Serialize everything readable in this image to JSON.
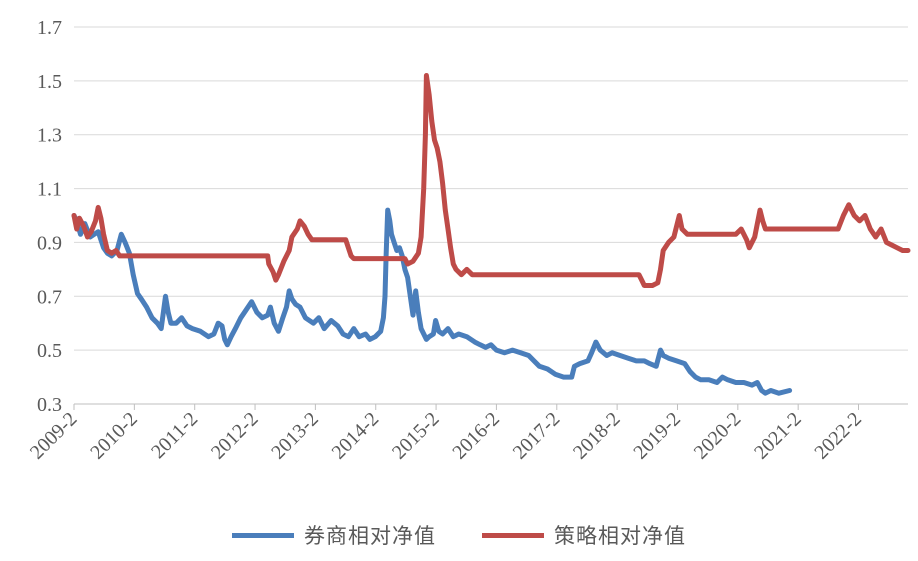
{
  "chart_data": {
    "type": "line",
    "title": "",
    "xlabel": "",
    "ylabel": "",
    "ylim": [
      0.3,
      1.7
    ],
    "y_ticks": [
      "0.3",
      "0.5",
      "0.7",
      "0.9",
      "1.1",
      "1.3",
      "1.5",
      "1.7"
    ],
    "x_ticks": [
      "2009-2",
      "2010-2",
      "2011-2",
      "2012-2",
      "2013-2",
      "2014-2",
      "2015-2",
      "2016-2",
      "2017-2",
      "2018-2",
      "2019-2",
      "2020-2",
      "2021-2",
      "2022-2"
    ],
    "grid": "horizontal",
    "legend_position": "bottom",
    "series": [
      {
        "name": "券商相对净值",
        "color": "#4a7ebb",
        "points": [
          [
            0.0,
            1.0
          ],
          [
            0.05,
            0.98
          ],
          [
            0.12,
            0.93
          ],
          [
            0.2,
            0.97
          ],
          [
            0.3,
            0.92
          ],
          [
            0.45,
            0.94
          ],
          [
            0.55,
            0.88
          ],
          [
            0.62,
            0.86
          ],
          [
            0.7,
            0.85
          ],
          [
            0.8,
            0.87
          ],
          [
            0.88,
            0.93
          ],
          [
            0.95,
            0.9
          ],
          [
            1.03,
            0.86
          ],
          [
            1.1,
            0.78
          ],
          [
            1.18,
            0.71
          ],
          [
            1.25,
            0.69
          ],
          [
            1.35,
            0.66
          ],
          [
            1.45,
            0.62
          ],
          [
            1.55,
            0.6
          ],
          [
            1.62,
            0.58
          ],
          [
            1.7,
            0.7
          ],
          [
            1.75,
            0.64
          ],
          [
            1.8,
            0.6
          ],
          [
            1.9,
            0.6
          ],
          [
            2.0,
            0.62
          ],
          [
            2.1,
            0.59
          ],
          [
            2.2,
            0.58
          ],
          [
            2.35,
            0.57
          ],
          [
            2.5,
            0.55
          ],
          [
            2.6,
            0.56
          ],
          [
            2.68,
            0.6
          ],
          [
            2.75,
            0.59
          ],
          [
            2.8,
            0.54
          ],
          [
            2.85,
            0.52
          ],
          [
            2.92,
            0.55
          ],
          [
            3.0,
            0.58
          ],
          [
            3.1,
            0.62
          ],
          [
            3.2,
            0.65
          ],
          [
            3.3,
            0.68
          ],
          [
            3.4,
            0.64
          ],
          [
            3.5,
            0.62
          ],
          [
            3.6,
            0.63
          ],
          [
            3.65,
            0.66
          ],
          [
            3.72,
            0.6
          ],
          [
            3.8,
            0.57
          ],
          [
            3.88,
            0.62
          ],
          [
            3.95,
            0.66
          ],
          [
            4.0,
            0.72
          ],
          [
            4.05,
            0.69
          ],
          [
            4.12,
            0.67
          ],
          [
            4.2,
            0.66
          ],
          [
            4.3,
            0.62
          ],
          [
            4.45,
            0.6
          ],
          [
            4.55,
            0.62
          ],
          [
            4.65,
            0.58
          ],
          [
            4.78,
            0.61
          ],
          [
            4.9,
            0.59
          ],
          [
            5.0,
            0.56
          ],
          [
            5.1,
            0.55
          ],
          [
            5.2,
            0.58
          ],
          [
            5.3,
            0.55
          ],
          [
            5.42,
            0.56
          ],
          [
            5.5,
            0.54
          ],
          [
            5.6,
            0.55
          ],
          [
            5.7,
            0.57
          ],
          [
            5.75,
            0.62
          ],
          [
            5.78,
            0.7
          ],
          [
            5.8,
            0.85
          ],
          [
            5.83,
            1.02
          ],
          [
            5.87,
            0.98
          ],
          [
            5.9,
            0.93
          ],
          [
            5.95,
            0.9
          ],
          [
            6.0,
            0.87
          ],
          [
            6.05,
            0.88
          ],
          [
            6.1,
            0.85
          ],
          [
            6.15,
            0.8
          ],
          [
            6.2,
            0.77
          ],
          [
            6.25,
            0.7
          ],
          [
            6.3,
            0.63
          ],
          [
            6.35,
            0.72
          ],
          [
            6.4,
            0.64
          ],
          [
            6.45,
            0.58
          ],
          [
            6.55,
            0.54
          ],
          [
            6.6,
            0.55
          ],
          [
            6.68,
            0.56
          ],
          [
            6.72,
            0.61
          ],
          [
            6.78,
            0.57
          ],
          [
            6.85,
            0.56
          ],
          [
            6.95,
            0.58
          ],
          [
            7.05,
            0.55
          ],
          [
            7.15,
            0.56
          ],
          [
            7.3,
            0.55
          ],
          [
            7.45,
            0.53
          ],
          [
            7.55,
            0.52
          ],
          [
            7.65,
            0.51
          ],
          [
            7.75,
            0.52
          ],
          [
            7.85,
            0.5
          ],
          [
            8.0,
            0.49
          ],
          [
            8.15,
            0.5
          ],
          [
            8.3,
            0.49
          ],
          [
            8.45,
            0.48
          ],
          [
            8.55,
            0.46
          ],
          [
            8.65,
            0.44
          ],
          [
            8.8,
            0.43
          ],
          [
            8.95,
            0.41
          ],
          [
            9.1,
            0.4
          ],
          [
            9.25,
            0.4
          ],
          [
            9.3,
            0.44
          ],
          [
            9.4,
            0.45
          ],
          [
            9.55,
            0.46
          ],
          [
            9.62,
            0.49
          ],
          [
            9.7,
            0.53
          ],
          [
            9.78,
            0.5
          ],
          [
            9.9,
            0.48
          ],
          [
            10.0,
            0.49
          ],
          [
            10.15,
            0.48
          ],
          [
            10.3,
            0.47
          ],
          [
            10.45,
            0.46
          ],
          [
            10.6,
            0.46
          ],
          [
            10.7,
            0.45
          ],
          [
            10.82,
            0.44
          ],
          [
            10.9,
            0.5
          ],
          [
            10.95,
            0.48
          ],
          [
            11.05,
            0.47
          ],
          [
            11.2,
            0.46
          ],
          [
            11.35,
            0.45
          ],
          [
            11.45,
            0.42
          ],
          [
            11.55,
            0.4
          ],
          [
            11.65,
            0.39
          ],
          [
            11.8,
            0.39
          ],
          [
            11.95,
            0.38
          ],
          [
            12.05,
            0.4
          ],
          [
            12.15,
            0.39
          ],
          [
            12.3,
            0.38
          ],
          [
            12.45,
            0.38
          ],
          [
            12.6,
            0.37
          ],
          [
            12.7,
            0.38
          ],
          [
            12.78,
            0.35
          ],
          [
            12.85,
            0.34
          ],
          [
            12.95,
            0.35
          ],
          [
            13.1,
            0.34
          ],
          [
            13.3,
            0.35
          ]
        ]
      },
      {
        "name": "策略相对净值",
        "color": "#be4b48",
        "points": [
          [
            0.0,
            1.0
          ],
          [
            0.05,
            0.95
          ],
          [
            0.1,
            0.99
          ],
          [
            0.18,
            0.96
          ],
          [
            0.25,
            0.92
          ],
          [
            0.32,
            0.94
          ],
          [
            0.4,
            0.98
          ],
          [
            0.45,
            1.03
          ],
          [
            0.5,
            0.99
          ],
          [
            0.55,
            0.93
          ],
          [
            0.62,
            0.87
          ],
          [
            0.7,
            0.86
          ],
          [
            0.78,
            0.87
          ],
          [
            0.85,
            0.85
          ],
          [
            3.6,
            0.85
          ],
          [
            3.62,
            0.82
          ],
          [
            3.7,
            0.79
          ],
          [
            3.75,
            0.76
          ],
          [
            3.8,
            0.78
          ],
          [
            3.9,
            0.83
          ],
          [
            4.0,
            0.87
          ],
          [
            4.05,
            0.92
          ],
          [
            4.15,
            0.95
          ],
          [
            4.2,
            0.98
          ],
          [
            4.28,
            0.96
          ],
          [
            4.35,
            0.93
          ],
          [
            4.42,
            0.91
          ],
          [
            5.05,
            0.91
          ],
          [
            5.1,
            0.88
          ],
          [
            5.15,
            0.85
          ],
          [
            5.2,
            0.84
          ],
          [
            6.15,
            0.84
          ],
          [
            6.2,
            0.82
          ],
          [
            6.3,
            0.83
          ],
          [
            6.4,
            0.86
          ],
          [
            6.45,
            0.92
          ],
          [
            6.5,
            1.1
          ],
          [
            6.53,
            1.3
          ],
          [
            6.55,
            1.52
          ],
          [
            6.6,
            1.45
          ],
          [
            6.65,
            1.35
          ],
          [
            6.7,
            1.28
          ],
          [
            6.75,
            1.25
          ],
          [
            6.8,
            1.2
          ],
          [
            6.85,
            1.12
          ],
          [
            6.9,
            1.02
          ],
          [
            6.95,
            0.95
          ],
          [
            7.0,
            0.88
          ],
          [
            7.05,
            0.82
          ],
          [
            7.1,
            0.8
          ],
          [
            7.2,
            0.78
          ],
          [
            7.3,
            0.8
          ],
          [
            7.4,
            0.78
          ],
          [
            7.5,
            0.78
          ],
          [
            10.5,
            0.78
          ],
          [
            10.55,
            0.76
          ],
          [
            10.6,
            0.74
          ],
          [
            10.75,
            0.74
          ],
          [
            10.85,
            0.75
          ],
          [
            10.9,
            0.8
          ],
          [
            10.95,
            0.87
          ],
          [
            11.05,
            0.9
          ],
          [
            11.15,
            0.92
          ],
          [
            11.25,
            1.0
          ],
          [
            11.3,
            0.95
          ],
          [
            11.4,
            0.93
          ],
          [
            12.3,
            0.93
          ],
          [
            12.4,
            0.95
          ],
          [
            12.5,
            0.91
          ],
          [
            12.55,
            0.88
          ],
          [
            12.65,
            0.92
          ],
          [
            12.75,
            1.02
          ],
          [
            12.8,
            0.98
          ],
          [
            12.85,
            0.95
          ],
          [
            13.0,
            0.95
          ],
          [
            14.2,
            0.95
          ],
          [
            14.3,
            1.0
          ],
          [
            14.4,
            1.04
          ],
          [
            14.5,
            1.0
          ],
          [
            14.6,
            0.98
          ],
          [
            14.7,
            1.0
          ],
          [
            14.8,
            0.95
          ],
          [
            14.9,
            0.92
          ],
          [
            15.0,
            0.95
          ],
          [
            15.1,
            0.9
          ],
          [
            15.2,
            0.89
          ],
          [
            15.3,
            0.88
          ],
          [
            15.4,
            0.87
          ],
          [
            15.5,
            0.87
          ]
        ]
      }
    ]
  }
}
